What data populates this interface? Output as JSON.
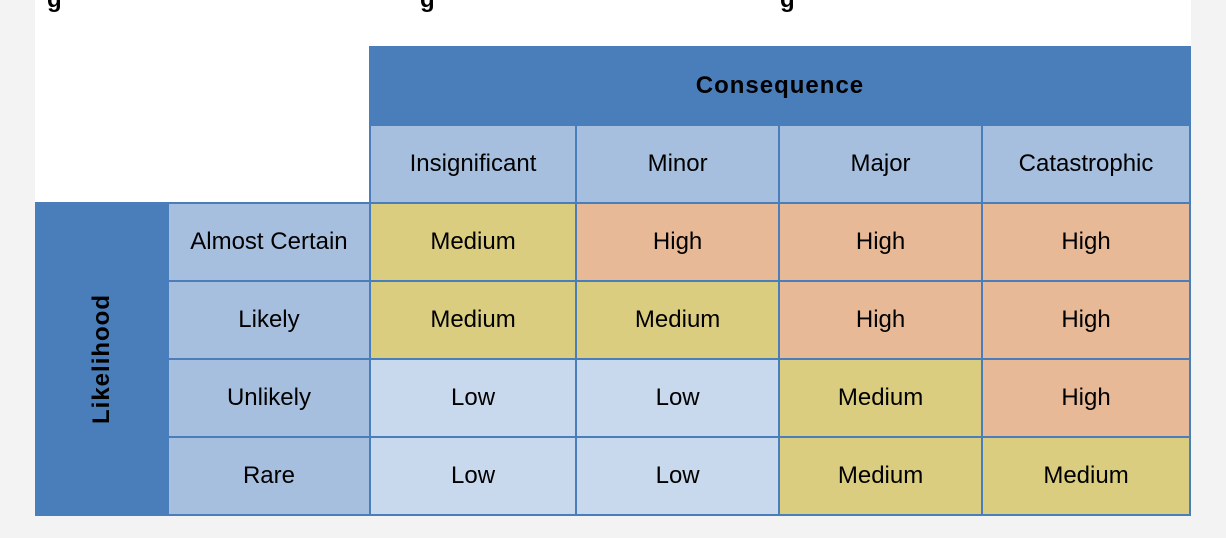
{
  "top_fragment": [
    "g",
    "g",
    "g"
  ],
  "matrix": {
    "consequence_label": "Consequence",
    "likelihood_label": "Likelihood",
    "columns": [
      "Insignificant",
      "Minor",
      "Major",
      "Catastrophic"
    ],
    "rows": [
      {
        "label": "Almost Certain",
        "cells": [
          "Medium",
          "High",
          "High",
          "High"
        ]
      },
      {
        "label": "Likely",
        "cells": [
          "Medium",
          "Medium",
          "High",
          "High"
        ]
      },
      {
        "label": "Unlikely",
        "cells": [
          "Low",
          "Low",
          "Medium",
          "High"
        ]
      },
      {
        "label": "Rare",
        "cells": [
          "Low",
          "Low",
          "Medium",
          "Medium"
        ]
      }
    ],
    "level_colors": {
      "High": "#e8b996",
      "Medium": "#dbcd7f",
      "Low": "#c8d8ed"
    },
    "header_color": "#4a7ebb",
    "label_color": "#a6bfdf"
  }
}
